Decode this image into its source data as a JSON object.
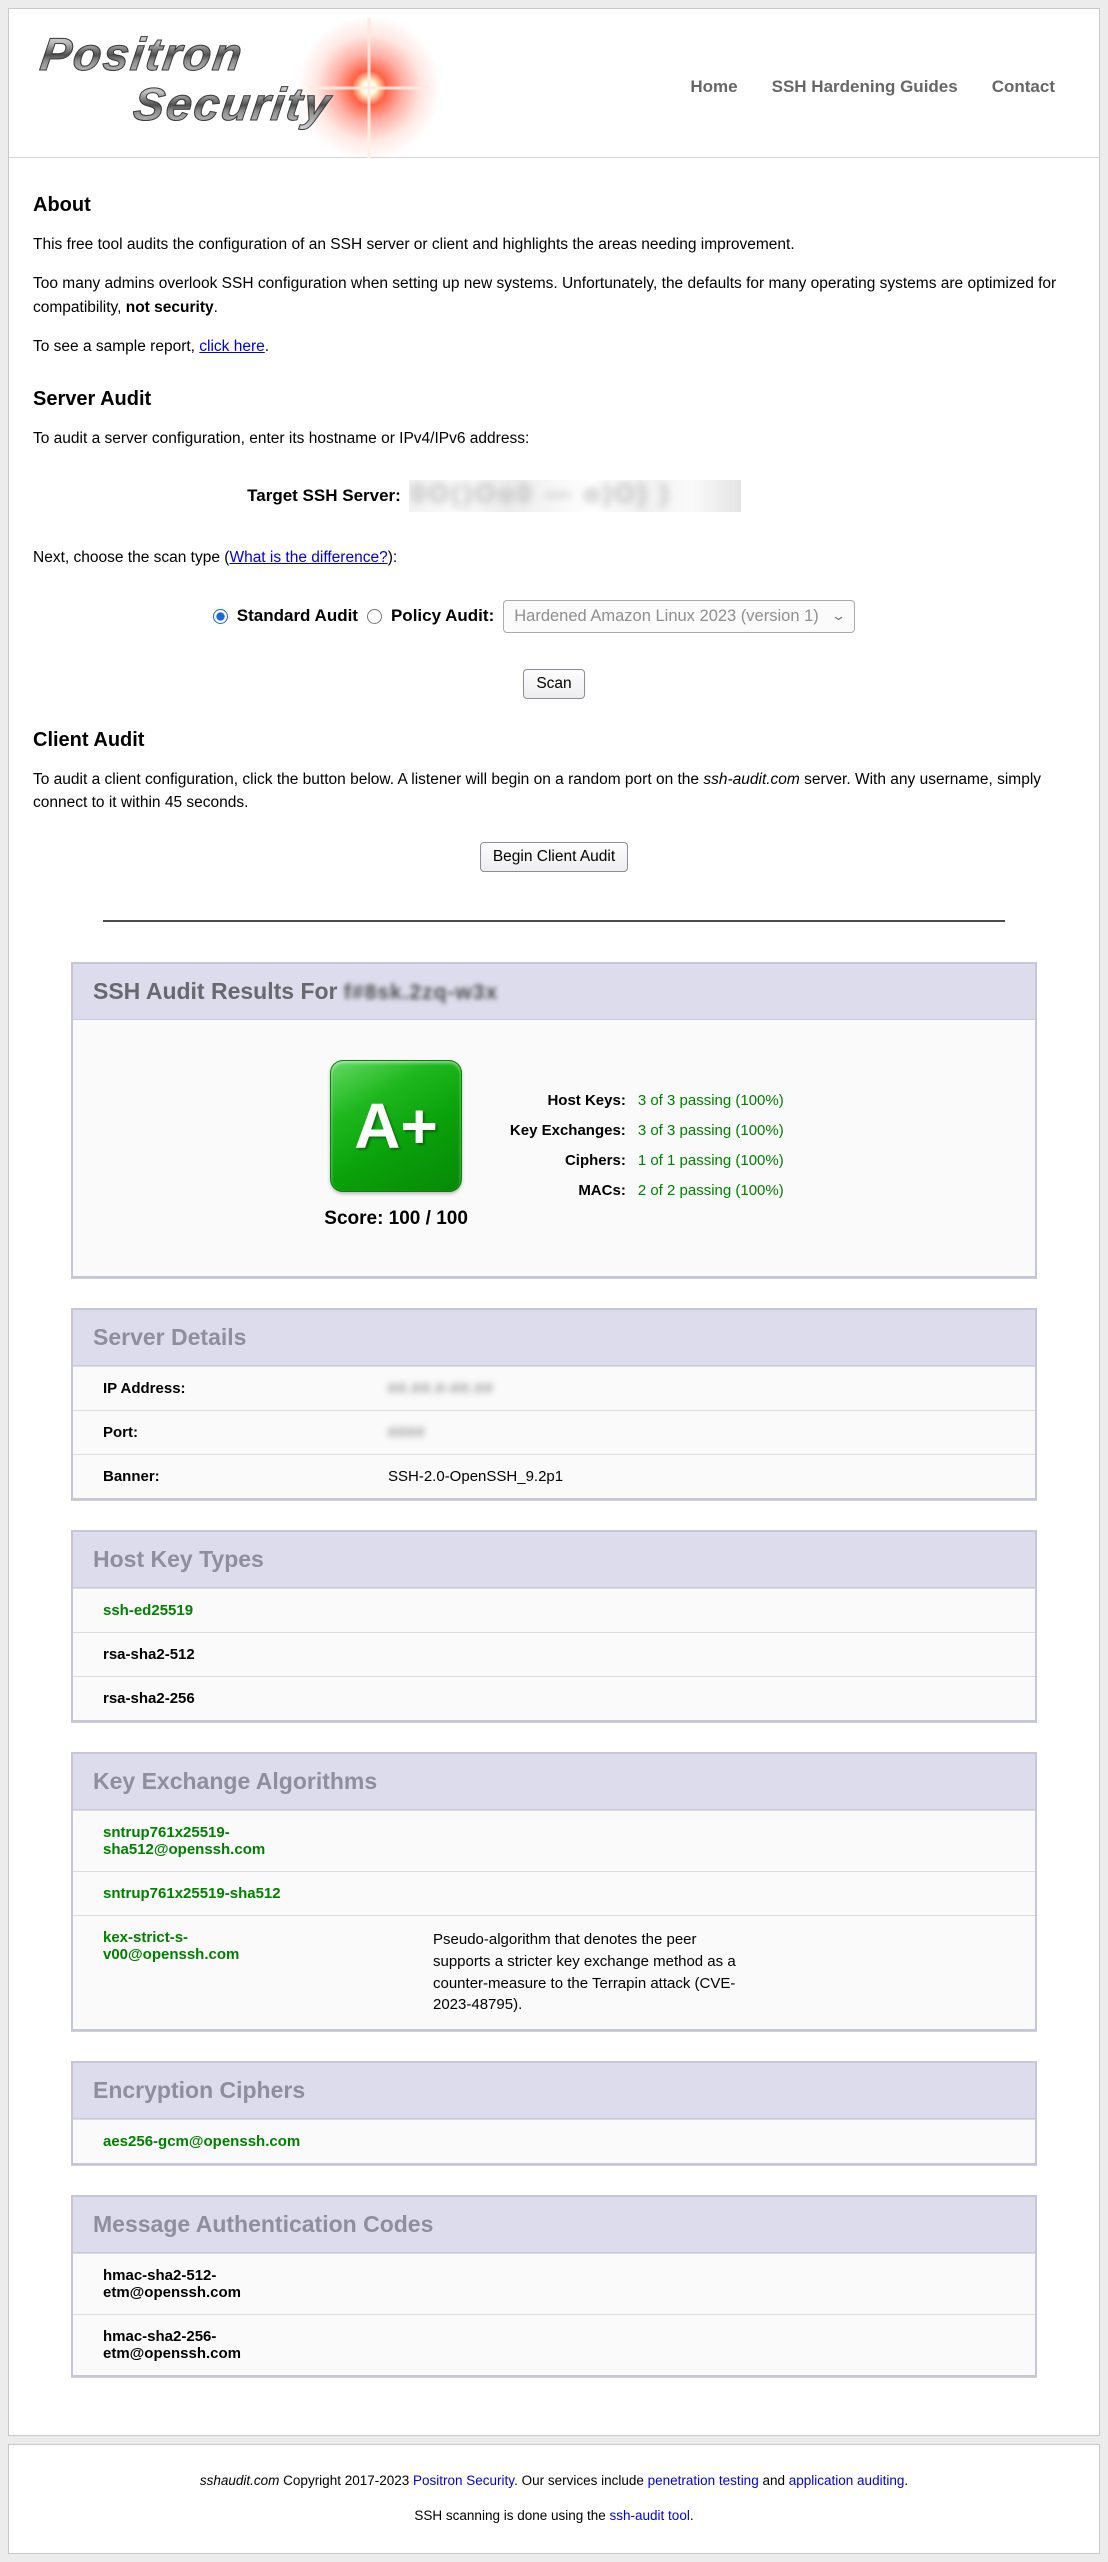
{
  "colors": {
    "pass_green": "#008000",
    "link_blue": "#0000e0",
    "panel_header_bg": "#dcdcec",
    "panel_border": "#c5c5dc",
    "grade_green": "#0aa10a"
  },
  "header": {
    "logo_line1": "Positron",
    "logo_line2": "Security",
    "nav": [
      {
        "label": "Home"
      },
      {
        "label": "SSH Hardening Guides"
      },
      {
        "label": "Contact"
      }
    ]
  },
  "about": {
    "heading": "About",
    "p1": "This free tool audits the configuration of an SSH server or client and highlights the areas needing improvement.",
    "p2_pre": "Too many admins overlook SSH configuration when setting up new systems. Unfortunately, the defaults for many operating systems are optimized for compatibility, ",
    "p2_bold": "not security",
    "p2_post": ".",
    "p3_pre": "To see a sample report, ",
    "p3_link": "click here",
    "p3_post": "."
  },
  "server_audit": {
    "heading": "Server Audit",
    "intro": "To audit a server configuration, enter its hostname or IPv4/IPv6 address:",
    "target_label": "Target SSH Server:",
    "target_value_redacted": true,
    "target_redacted_scramble": "0O()Oo0 — o)O) )",
    "scan_type_pre": "Next, choose the scan type (",
    "scan_type_link": "What is the difference?",
    "scan_type_post": "):",
    "standard_label": "Standard Audit",
    "standard_selected": true,
    "policy_label": "Policy Audit:",
    "policy_selected_option": "Hardened Amazon Linux 2023 (version 1)",
    "scan_button": "Scan"
  },
  "client_audit": {
    "heading": "Client Audit",
    "p_pre": "To audit a client configuration, click the button below. A listener will begin on a random port on the ",
    "p_italic": "ssh-audit.com",
    "p_post": " server. With any username, simply connect to it within 45 seconds.",
    "button": "Begin Client Audit"
  },
  "results": {
    "title_pre": "SSH Audit Results For ",
    "host_redacted": true,
    "host_redacted_scramble": "f#8sk.2zq-w3x",
    "grade": "A+",
    "score_label": "Score: 100 / 100",
    "stats": [
      {
        "label": "Host Keys:",
        "value": "3 of 3 passing (100%)"
      },
      {
        "label": "Key Exchanges:",
        "value": "3 of 3 passing (100%)"
      },
      {
        "label": "Ciphers:",
        "value": "1 of 1 passing (100%)"
      },
      {
        "label": "MACs:",
        "value": "2 of 2 passing (100%)"
      }
    ]
  },
  "server_details": {
    "heading": "Server Details",
    "rows": [
      {
        "label": "IP Address:",
        "value_redacted": true,
        "redacted_scramble": "##.##.#-##.##"
      },
      {
        "label": "Port:",
        "value_redacted": true,
        "redacted_scramble": "####"
      },
      {
        "label": "Banner:",
        "value": "SSH-2.0-OpenSSH_9.2p1"
      }
    ]
  },
  "host_key_types": {
    "heading": "Host Key Types",
    "items": [
      {
        "name": "ssh-ed25519",
        "status": "green"
      },
      {
        "name": "rsa-sha2-512",
        "status": "black"
      },
      {
        "name": "rsa-sha2-256",
        "status": "black"
      }
    ]
  },
  "key_exchanges": {
    "heading": "Key Exchange Algorithms",
    "items": [
      {
        "name": "sntrup761x25519-sha512@openssh.com",
        "status": "green",
        "note": ""
      },
      {
        "name": "sntrup761x25519-sha512",
        "status": "green",
        "note": ""
      },
      {
        "name": "kex-strict-s-v00@openssh.com",
        "status": "green",
        "note": "Pseudo-algorithm that denotes the peer supports a stricter key exchange method as a counter-measure to the Terrapin attack (CVE-2023-48795)."
      }
    ]
  },
  "ciphers": {
    "heading": "Encryption Ciphers",
    "items": [
      {
        "name": "aes256-gcm@openssh.com",
        "status": "green"
      }
    ]
  },
  "macs": {
    "heading": "Message Authentication Codes",
    "items": [
      {
        "name": "hmac-sha2-512-etm@openssh.com",
        "status": "black"
      },
      {
        "name": "hmac-sha2-256-etm@openssh.com",
        "status": "black"
      }
    ]
  },
  "footer": {
    "line1_italic": "sshaudit.com",
    "line1_a": " Copyright 2017-2023 ",
    "line1_link1": "Positron Security",
    "line1_b": ". Our services include ",
    "line1_link2": "penetration testing",
    "line1_c": " and ",
    "line1_link3": "application auditing",
    "line1_d": ".",
    "line2_pre": "SSH scanning is done using the ",
    "line2_link": "ssh-audit tool",
    "line2_post": "."
  }
}
